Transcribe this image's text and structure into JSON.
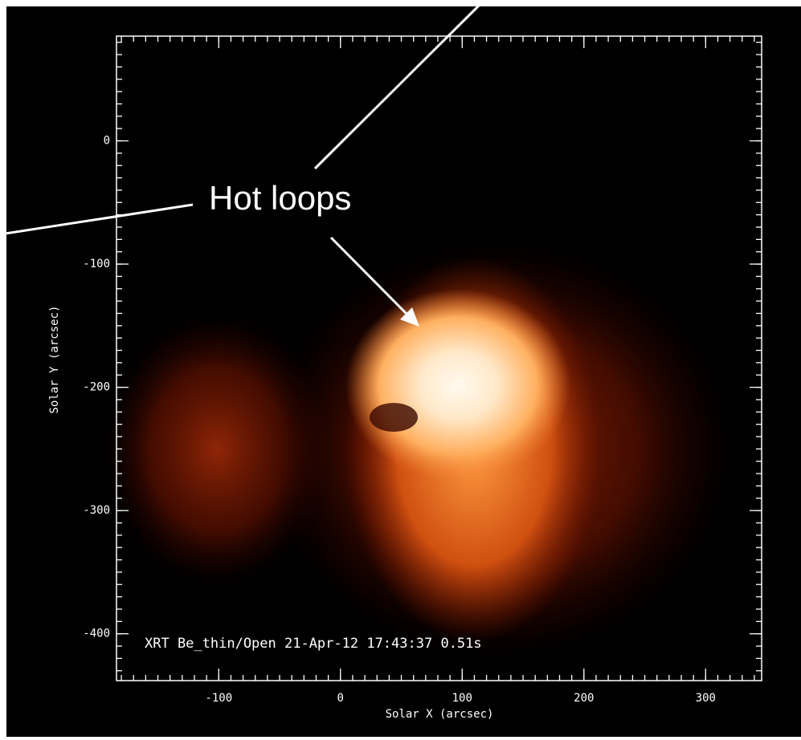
{
  "chart_data": {
    "type": "image",
    "xlabel": "Solar X (arcsec)",
    "ylabel": "Solar Y (arcsec)",
    "xlim": [
      -184,
      346
    ],
    "ylim": [
      -438,
      85
    ],
    "xticks": [
      -100,
      0,
      100,
      200,
      300
    ],
    "yticks": [
      -400,
      -300,
      -200,
      -100,
      0
    ],
    "caption": "XRT Be_thin/Open 21-Apr-12 17:43:37 0.51s",
    "annotation": "Hot loops"
  }
}
